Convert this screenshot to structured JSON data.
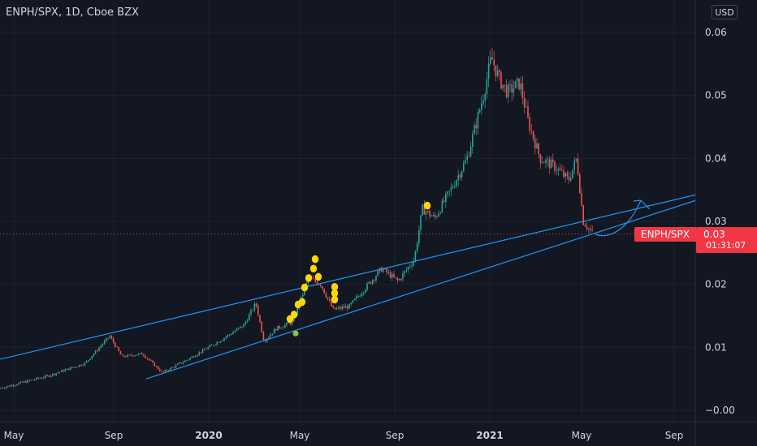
{
  "header": {
    "symbol_title": "ENPH/SPX, 1D, Cboe BZX",
    "currency": "USD"
  },
  "price_marker": {
    "label": "ENPH/SPX",
    "value": "0.03",
    "countdown": "01:31:07",
    "color": "#f23645"
  },
  "colors": {
    "up": "#26a69a",
    "down": "#ef5350",
    "trendline": "#2196f3",
    "marker": "#ffd700",
    "marker_green": "#8bc34a",
    "price_line": "#f23645"
  },
  "chart_data": {
    "type": "candlestick",
    "title": "ENPH/SPX, 1D, Cboe BZX",
    "y_ticks": [
      {
        "value": 0.06,
        "label": "0.06"
      },
      {
        "value": 0.05,
        "label": "0.05"
      },
      {
        "value": 0.04,
        "label": "0.04"
      },
      {
        "value": 0.03,
        "label": "0.03"
      },
      {
        "value": 0.02,
        "label": "0.02"
      },
      {
        "value": 0.01,
        "label": "0.01"
      },
      {
        "value": 0.0,
        "label": "−0.00"
      }
    ],
    "ylim": [
      -0.003,
      0.064
    ],
    "x_ticks": [
      {
        "label": "May",
        "bold": false
      },
      {
        "label": "Sep",
        "bold": false
      },
      {
        "label": "2020",
        "bold": true
      },
      {
        "label": "May",
        "bold": false
      },
      {
        "label": "Sep",
        "bold": false
      },
      {
        "label": "2021",
        "bold": true
      },
      {
        "label": "May",
        "bold": false
      },
      {
        "label": "Sep",
        "bold": false
      }
    ],
    "last_price": 0.028,
    "price_anchors": [
      [
        0,
        0.0035
      ],
      [
        60,
        0.0055
      ],
      [
        105,
        0.0075
      ],
      [
        135,
        0.0118
      ],
      [
        150,
        0.0085
      ],
      [
        175,
        0.009
      ],
      [
        200,
        0.006
      ],
      [
        230,
        0.008
      ],
      [
        270,
        0.011
      ],
      [
        300,
        0.0135
      ],
      [
        315,
        0.017
      ],
      [
        325,
        0.011
      ],
      [
        340,
        0.013
      ],
      [
        360,
        0.014
      ],
      [
        380,
        0.021
      ],
      [
        395,
        0.02
      ],
      [
        410,
        0.016
      ],
      [
        430,
        0.0165
      ],
      [
        450,
        0.0195
      ],
      [
        470,
        0.0225
      ],
      [
        490,
        0.0205
      ],
      [
        510,
        0.024
      ],
      [
        520,
        0.032
      ],
      [
        535,
        0.0305
      ],
      [
        555,
        0.035
      ],
      [
        575,
        0.04
      ],
      [
        595,
        0.05
      ],
      [
        605,
        0.056
      ],
      [
        615,
        0.0525
      ],
      [
        625,
        0.0505
      ],
      [
        640,
        0.052
      ],
      [
        650,
        0.046
      ],
      [
        665,
        0.04
      ],
      [
        685,
        0.0385
      ],
      [
        700,
        0.0365
      ],
      [
        710,
        0.04
      ],
      [
        718,
        0.03
      ],
      [
        730,
        0.028
      ]
    ],
    "trendlines": [
      {
        "from": [
          0,
          0.0081
        ],
        "to": [
          856,
          0.0342
        ]
      },
      {
        "from": [
          180,
          0.005
        ],
        "to": [
          856,
          0.0333
        ]
      }
    ],
    "markers": [
      {
        "x": 364,
        "value": 0.0122,
        "color": "green"
      },
      {
        "x": 357,
        "value": 0.0145
      },
      {
        "x": 362,
        "value": 0.0152
      },
      {
        "x": 367,
        "value": 0.0168
      },
      {
        "x": 372,
        "value": 0.0172
      },
      {
        "x": 375,
        "value": 0.0195
      },
      {
        "x": 380,
        "value": 0.021
      },
      {
        "x": 386,
        "value": 0.0225
      },
      {
        "x": 388,
        "value": 0.024
      },
      {
        "x": 392,
        "value": 0.0212
      },
      {
        "x": 412,
        "value": 0.0176
      },
      {
        "x": 412,
        "value": 0.0186
      },
      {
        "x": 412,
        "value": 0.0196
      },
      {
        "x": 526,
        "value": 0.0325
      }
    ]
  }
}
